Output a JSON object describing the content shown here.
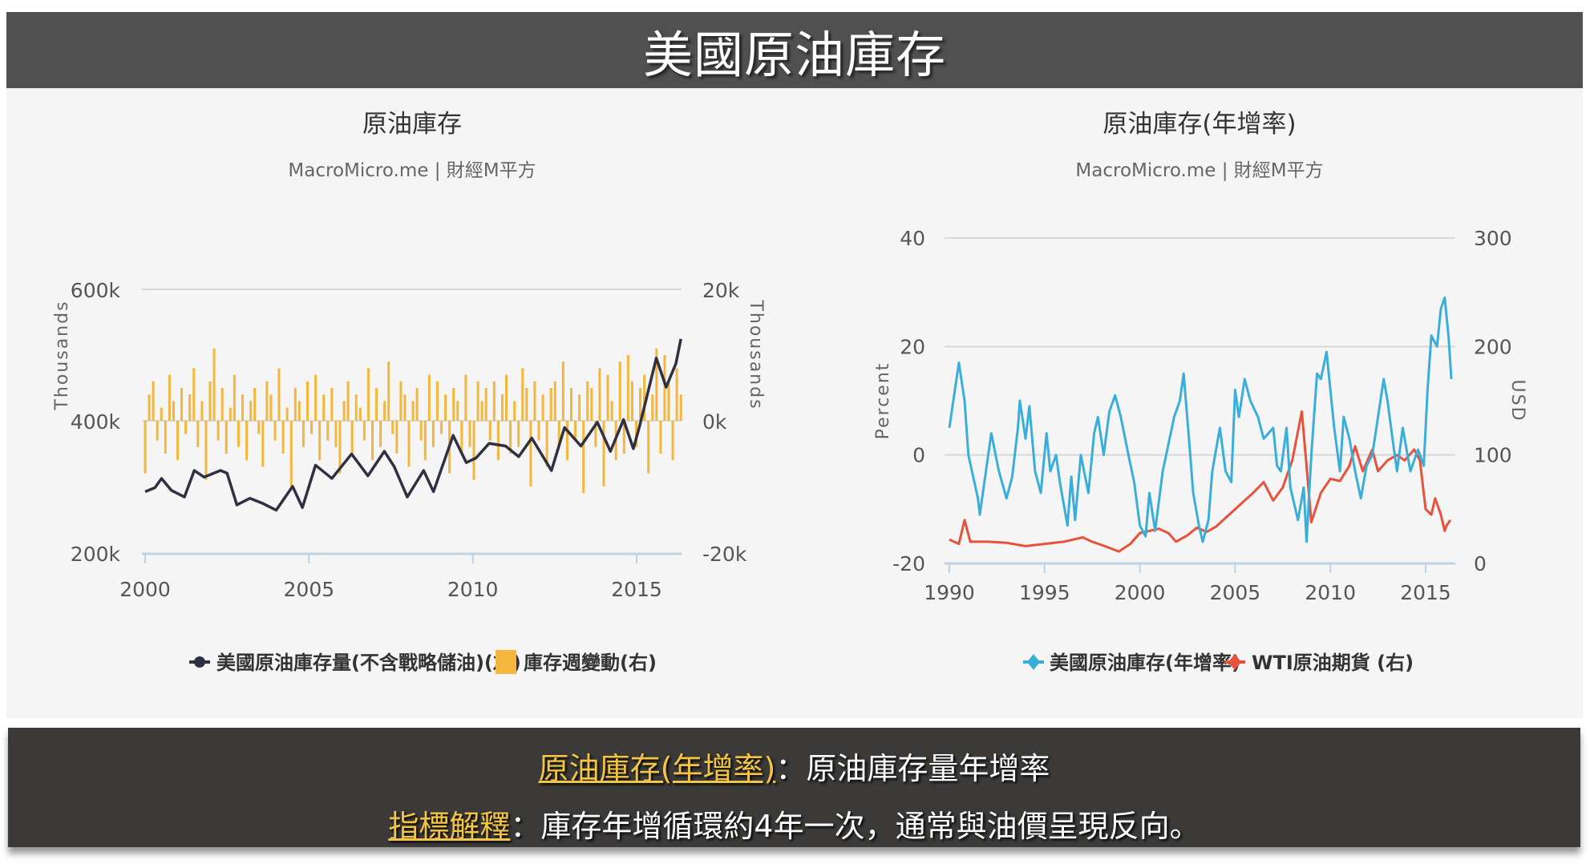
{
  "header": {
    "title": "美國原油庫存"
  },
  "colors": {
    "inventory": "#2f3142",
    "weekly_change": "#f4b63c",
    "yoy": "#3aaedb",
    "wti": "#e8513a",
    "highlight": "#f4c542"
  },
  "chart_data": [
    {
      "type": "line+bar",
      "title": "原油庫存",
      "subtitle": "MacroMicro.me | 財經M平方",
      "xlabel": "",
      "ylabel": "Thousands",
      "y2label": "Thousands",
      "xticks": [
        "2000",
        "2005",
        "2010",
        "2015"
      ],
      "yticks": [
        "600k",
        "400k",
        "200k"
      ],
      "y2ticks": [
        "20k",
        "0k",
        "-20k"
      ],
      "xlim": [
        2000,
        2016.4
      ],
      "ylim": [
        200,
        600
      ],
      "y2lim": [
        -20,
        20
      ],
      "grid": true,
      "legend_position": "bottom",
      "series": [
        {
          "name": "美國原油庫存量(不含戰略儲油)(左)",
          "type": "line",
          "axis": "left",
          "x": [
            2000,
            2000.3,
            2000.5,
            2000.8,
            2001.2,
            2001.5,
            2001.8,
            2002.3,
            2002.5,
            2002.8,
            2003.2,
            2003.6,
            2004,
            2004.5,
            2004.8,
            2005.2,
            2005.7,
            2006.3,
            2006.8,
            2007.3,
            2007.6,
            2008,
            2008.5,
            2008.8,
            2009.4,
            2009.8,
            2010.1,
            2010.5,
            2011,
            2011.4,
            2011.8,
            2012.4,
            2012.8,
            2013.3,
            2013.8,
            2014.2,
            2014.6,
            2014.9,
            2015.1,
            2015.6,
            2015.9,
            2016.2,
            2016.35
          ],
          "y": [
            294,
            300,
            314,
            296,
            286,
            326,
            316,
            326,
            322,
            274,
            284,
            276,
            266,
            302,
            270,
            334,
            314,
            351,
            318,
            355,
            332,
            286,
            326,
            294,
            379,
            338,
            345,
            367,
            363,
            347,
            375,
            326,
            391,
            363,
            399,
            355,
            403,
            359,
            395,
            496,
            452,
            488,
            525
          ]
        },
        {
          "name": "庫存週變動(右)",
          "type": "bar",
          "axis": "right",
          "x_start": 2000,
          "x_end": 2016.35,
          "values": [
            -8,
            4,
            6,
            -3,
            2,
            -5,
            7,
            3,
            -6,
            5,
            -2,
            4,
            8,
            -4,
            3,
            -9,
            6,
            11,
            -3,
            5,
            -5,
            2,
            7,
            -4,
            4,
            -6,
            3,
            5,
            -2,
            -7,
            6,
            4,
            -3,
            8,
            -5,
            2,
            -10,
            5,
            3,
            -4,
            6,
            -2,
            7,
            -6,
            4,
            -3,
            5,
            -4,
            -8,
            3,
            6,
            -5,
            4,
            2,
            -3,
            8,
            -6,
            5,
            -4,
            3,
            9,
            -2,
            -5,
            6,
            4,
            -7,
            3,
            5,
            -3,
            -6,
            7,
            -4,
            6,
            -2,
            4,
            -8,
            5,
            3,
            -5,
            7,
            -4,
            -9,
            6,
            3,
            5,
            -3,
            6,
            -6,
            4,
            7,
            -5,
            3,
            -4,
            8,
            5,
            -10,
            6,
            -3,
            4,
            -7,
            5,
            6,
            -4,
            9,
            -6,
            5,
            -3,
            4,
            -11,
            6,
            5,
            -4,
            8,
            -10,
            7,
            3,
            -6,
            9,
            -5,
            10,
            6,
            -4,
            5,
            7,
            -8,
            4,
            11,
            -5,
            10,
            6,
            -6,
            8,
            4
          ]
        }
      ]
    },
    {
      "type": "line",
      "title": "原油庫存(年增率)",
      "subtitle": "MacroMicro.me | 財經M平方",
      "xlabel": "",
      "ylabel": "Percent",
      "y2label": "USD",
      "xticks": [
        "1990",
        "1995",
        "2000",
        "2005",
        "2010",
        "2015"
      ],
      "yticks": [
        "40",
        "20",
        "0",
        "-20"
      ],
      "y2ticks": [
        "300",
        "200",
        "100",
        "0"
      ],
      "xlim": [
        1990,
        2016.4
      ],
      "ylim": [
        -20,
        40
      ],
      "y2lim": [
        0,
        300
      ],
      "grid": true,
      "legend_position": "bottom",
      "series": [
        {
          "name": "美國原油庫存(年增率)",
          "axis": "left",
          "x": [
            1990,
            1990.5,
            1990.8,
            1991,
            1991.5,
            1991.6,
            1992,
            1992.2,
            1992.6,
            1993,
            1993.3,
            1993.6,
            1993.7,
            1994,
            1994.2,
            1994.5,
            1994.8,
            1995.1,
            1995.3,
            1995.6,
            1995.8,
            1996.2,
            1996.4,
            1996.6,
            1996.9,
            1997.3,
            1997.6,
            1997.8,
            1998.1,
            1998.4,
            1998.7,
            1999,
            1999.4,
            1999.7,
            2000,
            2000.3,
            2000.5,
            2000.8,
            2001.2,
            2001.5,
            2001.8,
            2002.1,
            2002.3,
            2002.6,
            2002.8,
            2003.1,
            2003.3,
            2003.6,
            2003.8,
            2004.2,
            2004.5,
            2004.8,
            2005,
            2005.2,
            2005.5,
            2005.8,
            2006.2,
            2006.5,
            2007,
            2007.2,
            2007.4,
            2007.7,
            2007.9,
            2008.3,
            2008.6,
            2008.75,
            2009,
            2009.3,
            2009.5,
            2009.8,
            2010,
            2010.2,
            2010.5,
            2010.7,
            2011,
            2011.3,
            2011.6,
            2011.9,
            2012.2,
            2012.5,
            2012.8,
            2013,
            2013.3,
            2013.5,
            2013.8,
            2014.2,
            2014.6,
            2014.9,
            2015.1,
            2015.3,
            2015.6,
            2015.8,
            2016,
            2016.2,
            2016.35
          ],
          "y": [
            5,
            17,
            10,
            0,
            -8,
            -11,
            -1,
            4,
            -3,
            -8,
            -4,
            5,
            10,
            3,
            9,
            -3,
            -7,
            4,
            -3,
            0,
            -5,
            -13,
            -4,
            -12,
            0,
            -7,
            4,
            7,
            0,
            8,
            11,
            7,
            0,
            -5,
            -13,
            -15,
            -7,
            -14,
            -3,
            2,
            7,
            10,
            15,
            2,
            -7,
            -13,
            -16,
            -12,
            -3,
            5,
            -3,
            -5,
            12,
            7,
            14,
            10,
            7,
            3,
            5,
            -2,
            -3,
            5,
            -6,
            -12,
            -6,
            -16,
            0,
            15,
            14,
            19,
            12,
            5,
            -3,
            7,
            3,
            -3,
            -8,
            -2,
            0,
            7,
            14,
            10,
            2,
            -3,
            5,
            -3,
            1,
            -2,
            12,
            22,
            20,
            27,
            29,
            22,
            14
          ]
        },
        {
          "name": "WTI原油期貨 (右)",
          "axis": "right",
          "x": [
            1990,
            1990.5,
            1990.8,
            1991.1,
            1992,
            1993,
            1994,
            1995,
            1996,
            1997,
            1997.5,
            1998,
            1998.9,
            1999.5,
            2000,
            2000.5,
            2001,
            2001.5,
            2001.9,
            2002.5,
            2003,
            2003.5,
            2004,
            2004.5,
            2005,
            2005.5,
            2006,
            2006.5,
            2007,
            2007.5,
            2008,
            2008.5,
            2008.7,
            2009,
            2009.5,
            2010,
            2010.5,
            2011,
            2011.3,
            2011.7,
            2012.2,
            2012.5,
            2013,
            2013.5,
            2013.9,
            2014.4,
            2014.7,
            2015,
            2015.3,
            2015.5,
            2015.8,
            2016,
            2016.1,
            2016.3
          ],
          "y": [
            22,
            18,
            40,
            20,
            20,
            19,
            16,
            18,
            20,
            24,
            20,
            17,
            11,
            18,
            28,
            30,
            32,
            28,
            20,
            26,
            33,
            29,
            34,
            42,
            50,
            58,
            66,
            75,
            58,
            70,
            95,
            140,
            100,
            38,
            65,
            78,
            76,
            90,
            108,
            85,
            105,
            85,
            95,
            100,
            95,
            105,
            95,
            50,
            45,
            60,
            45,
            30,
            35,
            40
          ]
        }
      ]
    }
  ],
  "footer": {
    "line1": {
      "term": "原油庫存(年增率)",
      "text": "：原油庫存量年增率"
    },
    "line2": {
      "term": "指標解釋",
      "text": "：庫存年增循環約4年一次，通常與油價呈現反向。"
    }
  }
}
